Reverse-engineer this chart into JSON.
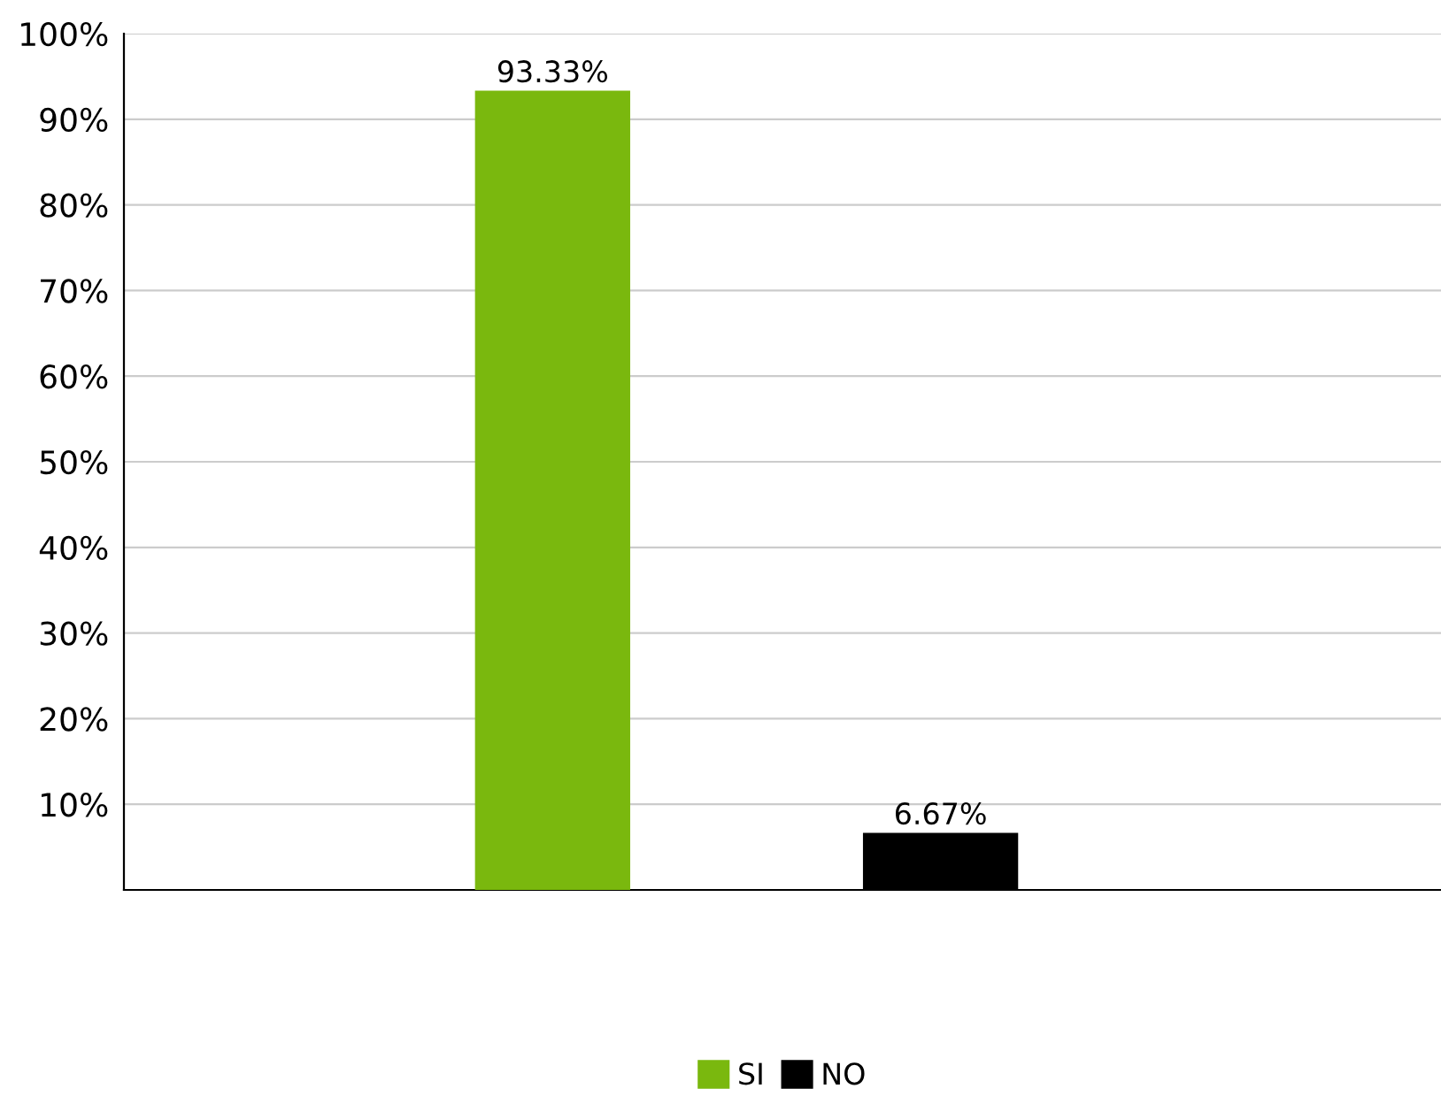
{
  "chart_data": {
    "type": "bar",
    "categories": [
      null,
      null
    ],
    "series": [
      {
        "name": "SI",
        "color": "#7ab80e",
        "values": [
          93.33,
          null
        ]
      },
      {
        "name": "NO",
        "color": "#000000",
        "values": [
          null,
          6.67
        ]
      }
    ],
    "ylim": [
      0,
      100
    ],
    "yticks": [
      {
        "value": 0,
        "label": null
      },
      {
        "value": 10,
        "label": "10%"
      },
      {
        "value": 20,
        "label": "20%"
      },
      {
        "value": 30,
        "label": "30%"
      },
      {
        "value": 40,
        "label": "40%"
      },
      {
        "value": 50,
        "label": "50%"
      },
      {
        "value": 60,
        "label": "60%"
      },
      {
        "value": 70,
        "label": "70%"
      },
      {
        "value": 80,
        "label": "80%"
      },
      {
        "value": 90,
        "label": "90%"
      },
      {
        "value": 100,
        "label": "100%"
      }
    ],
    "value_labels": [
      [
        "93.33%",
        null
      ],
      [
        null,
        "6.67%"
      ]
    ],
    "grid": "y",
    "legend": "bottom"
  }
}
